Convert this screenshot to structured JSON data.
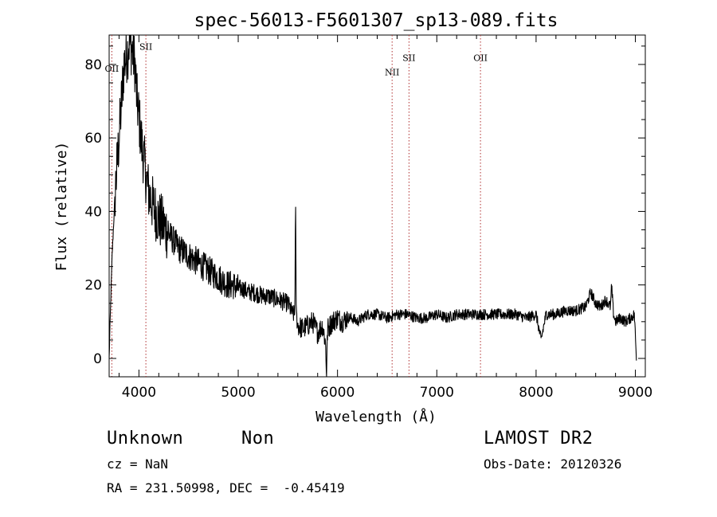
{
  "chart_data": {
    "type": "line",
    "title": "spec-56013-F5601307_sp13-089.fits",
    "xlabel": "Wavelength (Å)",
    "ylabel": "Flux (relative)",
    "xlim": [
      3700,
      9100
    ],
    "ylim": [
      -5,
      88
    ],
    "xticks": [
      4000,
      5000,
      6000,
      7000,
      8000,
      9000
    ],
    "yticks": [
      0,
      20,
      40,
      60,
      80
    ],
    "grid": false,
    "series_color": "#000000",
    "line_color": "#b03030",
    "series": [
      {
        "x": [
          3700,
          3710,
          3730,
          3760,
          3800,
          3830,
          3850,
          3870,
          3890,
          3900,
          3920,
          3940,
          3960,
          3980,
          4000,
          4020,
          4040,
          4060,
          4080,
          4100,
          4150,
          4200,
          4250,
          4300,
          4350,
          4400,
          4450,
          4500,
          4550,
          4600,
          4650,
          4700,
          4750,
          4800,
          4850,
          4900,
          4950,
          5000,
          5050,
          5100,
          5150,
          5200,
          5250,
          5300,
          5350,
          5400,
          5450,
          5500,
          5550,
          5570,
          5577,
          5585,
          5600,
          5650,
          5700,
          5750,
          5800,
          5850,
          5880,
          5890,
          5895,
          5900,
          5950,
          6000,
          6050,
          6100,
          6150,
          6200,
          6250,
          6300,
          6400,
          6500,
          6600,
          6700,
          6800,
          6900,
          7000,
          7100,
          7200,
          7300,
          7400,
          7500,
          7600,
          7700,
          7800,
          7900,
          8000,
          8050,
          8100,
          8200,
          8300,
          8400,
          8500,
          8550,
          8600,
          8650,
          8700,
          8750,
          8760,
          8780,
          8800,
          8850,
          8900,
          8950,
          8990,
          9010
        ],
        "y": [
          0,
          10,
          28,
          45,
          60,
          72,
          80,
          82,
          84,
          86,
          85,
          83,
          80,
          70,
          66,
          60,
          56,
          52,
          48,
          45,
          41,
          38,
          36,
          34,
          32,
          30,
          29,
          28,
          27,
          26,
          25,
          24,
          23,
          22,
          21,
          20,
          20,
          19,
          19,
          18,
          18,
          17.5,
          17,
          17,
          16.5,
          16,
          15.5,
          15,
          12,
          12,
          43,
          12,
          9,
          8,
          9,
          10,
          7,
          9,
          4,
          -5,
          3,
          8,
          10,
          11,
          10,
          11,
          11,
          10,
          11,
          12,
          12,
          11,
          12,
          12,
          11,
          11,
          12,
          11,
          12,
          12,
          12,
          12,
          12,
          12,
          12,
          11,
          12,
          5,
          12,
          12,
          13,
          13,
          14,
          18,
          15,
          14,
          16,
          14,
          20,
          12,
          10,
          11,
          10,
          11,
          12,
          0
        ]
      }
    ],
    "annotations": [
      {
        "label": "OII",
        "wavelength": 3727,
        "level": 78
      },
      {
        "label": "SII",
        "wavelength": 4070,
        "level": 84
      },
      {
        "label": "NII",
        "wavelength": 6550,
        "level": 77
      },
      {
        "label": "SII",
        "wavelength": 6720,
        "level": 81
      },
      {
        "label": "OII",
        "wavelength": 7440,
        "level": 81
      }
    ]
  },
  "info": {
    "class_name": "Unknown",
    "subclass": "Non",
    "cz": "cz = NaN",
    "coords": "RA = 231.50998, DEC =  -0.45419",
    "survey": "LAMOST DR2",
    "obs_date": "Obs-Date: 20120326"
  }
}
